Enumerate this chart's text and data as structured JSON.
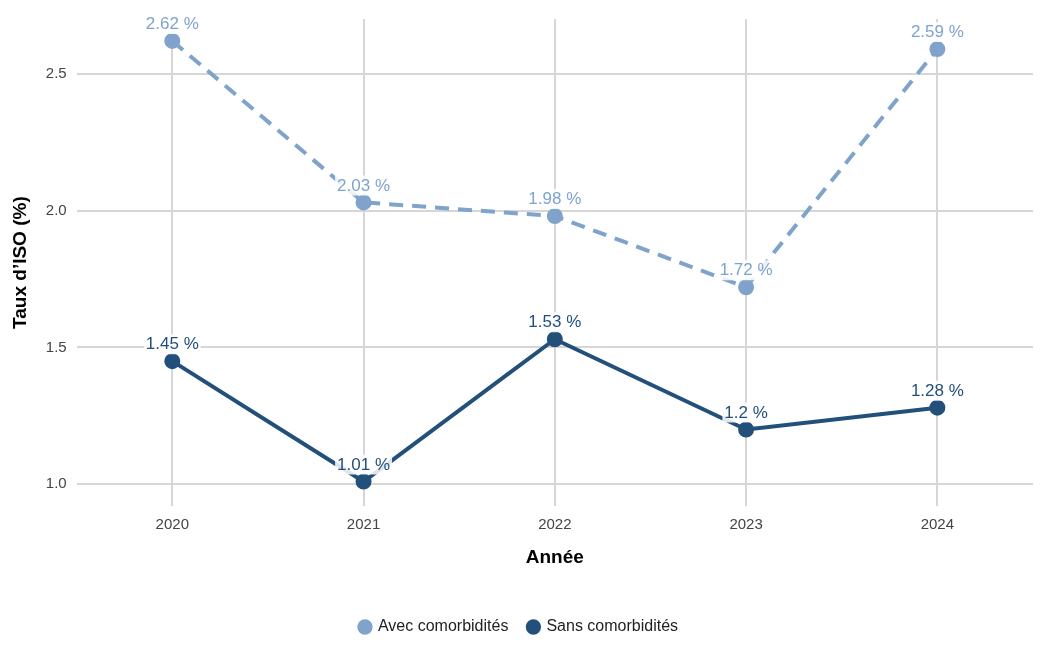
{
  "chart_data": {
    "type": "line",
    "xlabel": "Année",
    "ylabel": "Taux d’ISO (%)",
    "categories": [
      "2020",
      "2021",
      "2022",
      "2023",
      "2024"
    ],
    "series": [
      {
        "name": "Avec comorbidités",
        "color": "#7fa3cb",
        "line_style": "dashed",
        "values": [
          2.62,
          2.03,
          1.98,
          1.72,
          2.59
        ],
        "value_labels": [
          "2.62 %",
          "2.03 %",
          "1.98 %",
          "1.72 %",
          "2.59 %"
        ]
      },
      {
        "name": "Sans comorbidités",
        "color": "#23507a",
        "line_style": "solid",
        "values": [
          1.45,
          1.01,
          1.53,
          1.2,
          1.28
        ],
        "value_labels": [
          "1.45 %",
          "1.01 %",
          "1.53 %",
          "1.2 %",
          "1.28 %"
        ]
      }
    ],
    "ylim": [
      0.92,
      2.7
    ],
    "yticks": [
      {
        "value": 1,
        "label": "1.0"
      },
      {
        "value": 1.5,
        "label": "1.5"
      },
      {
        "value": 2,
        "label": "2.0"
      },
      {
        "value": 2.5,
        "label": "2.5"
      }
    ],
    "grid": true,
    "legend": "bottom",
    "marker": "circle"
  }
}
